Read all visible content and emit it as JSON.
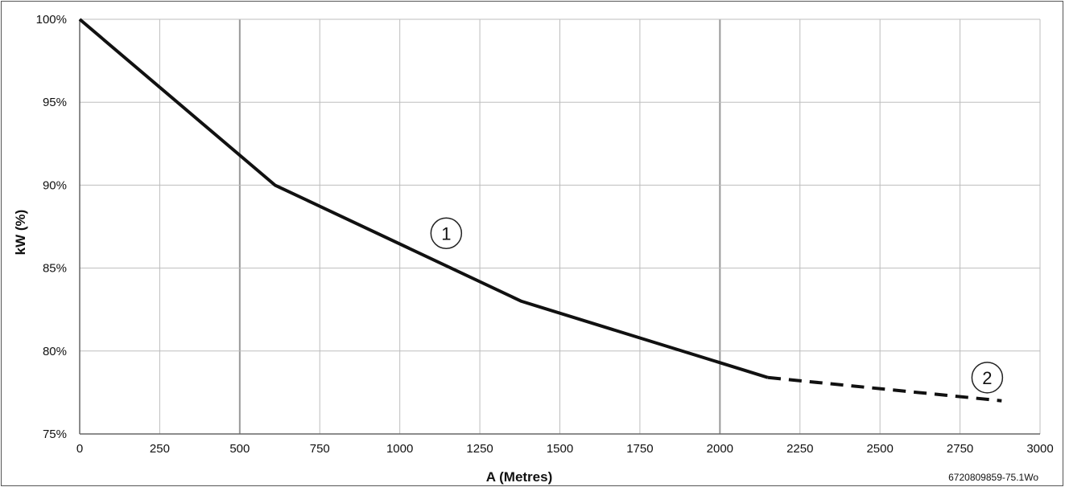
{
  "chart_data": {
    "type": "line",
    "title": "",
    "xlabel": "A (Metres)",
    "ylabel": "kW (%)",
    "xlim": [
      0,
      3000
    ],
    "ylim": [
      75,
      100
    ],
    "x_ticks": [
      0,
      250,
      500,
      750,
      1000,
      1250,
      1500,
      1750,
      2000,
      2250,
      2500,
      2750,
      3000
    ],
    "x_tick_labels": [
      "0",
      "250",
      "500",
      "750",
      "1000",
      "1250",
      "1500",
      "1750",
      "2000",
      "2250",
      "2500",
      "2750",
      "3000"
    ],
    "y_ticks": [
      75,
      80,
      85,
      90,
      95,
      100
    ],
    "y_tick_labels": [
      "75%",
      "80%",
      "85%",
      "90%",
      "95%",
      "100%"
    ],
    "grid": true,
    "series": [
      {
        "style": "solid",
        "color": "#111111",
        "x": [
          0,
          610,
          1380,
          2150
        ],
        "y": [
          100,
          90,
          83,
          78.4
        ]
      },
      {
        "style": "dashed",
        "color": "#111111",
        "x": [
          2150,
          2880
        ],
        "y": [
          78.4,
          77
        ]
      }
    ],
    "annotations": [
      {
        "text": "1",
        "x": 1145,
        "y": 87.1
      },
      {
        "text": "2",
        "x": 2835,
        "y": 78.4
      }
    ]
  },
  "figure_ref": "6720809859-75.1Wo"
}
